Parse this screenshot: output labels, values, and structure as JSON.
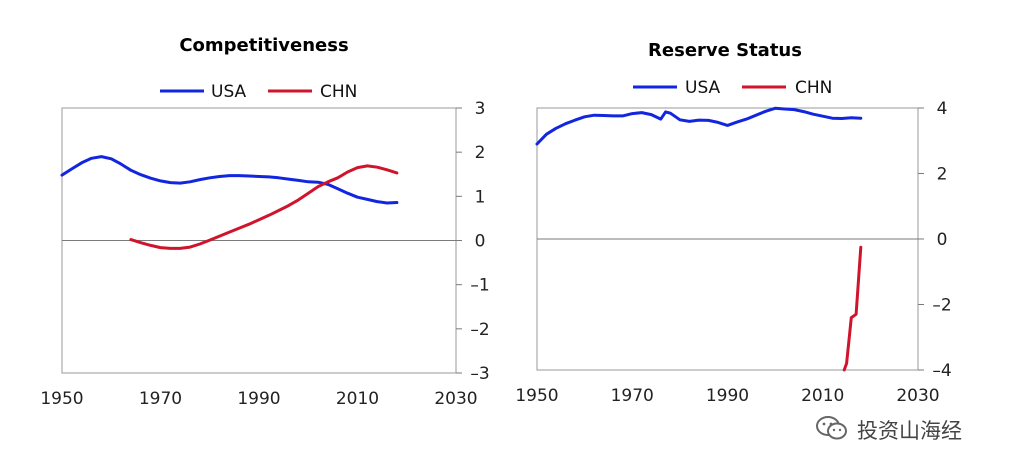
{
  "chart_data": [
    {
      "type": "line",
      "title": "Competitiveness",
      "xlim": [
        1950,
        2030
      ],
      "ylim": [
        -3,
        3
      ],
      "x_ticks": [
        "1950",
        "1970",
        "1990",
        "2010",
        "2030"
      ],
      "y_ticks": [
        "3",
        "2",
        "1",
        "0",
        "–1",
        "–2",
        "–3"
      ],
      "legend": "top-center",
      "series": [
        {
          "name": "USA",
          "color": "#1226e0",
          "x": [
            1950,
            1952,
            1954,
            1956,
            1958,
            1960,
            1962,
            1964,
            1966,
            1968,
            1970,
            1972,
            1974,
            1976,
            1978,
            1980,
            1982,
            1984,
            1986,
            1988,
            1990,
            1992,
            1994,
            1996,
            1998,
            2000,
            2002,
            2004,
            2006,
            2008,
            2010,
            2012,
            2014,
            2016,
            2018
          ],
          "y": [
            1.48,
            1.62,
            1.76,
            1.86,
            1.9,
            1.85,
            1.73,
            1.59,
            1.49,
            1.41,
            1.35,
            1.31,
            1.3,
            1.33,
            1.38,
            1.42,
            1.45,
            1.47,
            1.47,
            1.46,
            1.45,
            1.44,
            1.42,
            1.39,
            1.36,
            1.33,
            1.32,
            1.27,
            1.17,
            1.07,
            0.98,
            0.93,
            0.88,
            0.85,
            0.86
          ]
        },
        {
          "name": "CHN",
          "color": "#d0142c",
          "x": [
            1964,
            1966,
            1968,
            1970,
            1972,
            1974,
            1976,
            1978,
            1980,
            1982,
            1984,
            1986,
            1988,
            1990,
            1992,
            1994,
            1996,
            1998,
            2000,
            2002,
            2004,
            2006,
            2008,
            2010,
            2012,
            2014,
            2016,
            2018
          ],
          "y": [
            0.02,
            -0.05,
            -0.11,
            -0.16,
            -0.18,
            -0.18,
            -0.15,
            -0.08,
            0.01,
            0.1,
            0.19,
            0.28,
            0.37,
            0.47,
            0.57,
            0.68,
            0.79,
            0.92,
            1.07,
            1.22,
            1.33,
            1.42,
            1.55,
            1.65,
            1.69,
            1.66,
            1.6,
            1.53
          ]
        }
      ]
    },
    {
      "type": "line",
      "title": "Reserve Status",
      "xlim": [
        1950,
        2030
      ],
      "ylim": [
        -4,
        4
      ],
      "x_ticks": [
        "1950",
        "1970",
        "1990",
        "2010",
        "2030"
      ],
      "y_ticks": [
        "4",
        "2",
        "0",
        "–2",
        "–4"
      ],
      "legend": "top-center",
      "series": [
        {
          "name": "USA",
          "color": "#1226e0",
          "x": [
            1950,
            1952,
            1954,
            1956,
            1958,
            1960,
            1962,
            1964,
            1966,
            1968,
            1970,
            1972,
            1974,
            1976,
            1977,
            1978,
            1980,
            1982,
            1984,
            1986,
            1988,
            1990,
            1992,
            1994,
            1996,
            1998,
            2000,
            2002,
            2004,
            2006,
            2008,
            2010,
            2012,
            2014,
            2016,
            2018
          ],
          "y": [
            2.9,
            3.2,
            3.38,
            3.52,
            3.63,
            3.73,
            3.78,
            3.77,
            3.76,
            3.76,
            3.83,
            3.86,
            3.8,
            3.66,
            3.88,
            3.84,
            3.64,
            3.59,
            3.63,
            3.62,
            3.56,
            3.47,
            3.57,
            3.66,
            3.78,
            3.9,
            3.99,
            3.97,
            3.95,
            3.89,
            3.81,
            3.75,
            3.69,
            3.68,
            3.7,
            3.69
          ]
        },
        {
          "name": "CHN",
          "color": "#d0142c",
          "x": [
            2014.5,
            2015,
            2016,
            2017,
            2018
          ],
          "y": [
            -4.15,
            -3.8,
            -2.4,
            -2.3,
            -0.25
          ]
        }
      ]
    }
  ],
  "watermark": {
    "text": "投资山海经",
    "icon": "wechat-icon"
  }
}
